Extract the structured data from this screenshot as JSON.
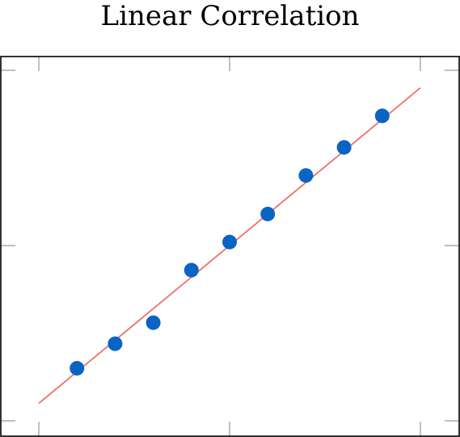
{
  "chart_data": {
    "type": "scatter",
    "title": "Linear Correlation",
    "xlabel": "",
    "ylabel": "",
    "xlim": [
      0,
      10
    ],
    "ylim": [
      0,
      10
    ],
    "grid": false,
    "series": [
      {
        "values": [
          {
            "x": 1,
            "y": 1.5
          },
          {
            "x": 2,
            "y": 2.2
          },
          {
            "x": 3,
            "y": 2.8
          },
          {
            "x": 4,
            "y": 4.3
          },
          {
            "x": 5,
            "y": 5.1
          },
          {
            "x": 6,
            "y": 5.9
          },
          {
            "x": 7,
            "y": 7.0
          },
          {
            "x": 8,
            "y": 7.8
          },
          {
            "x": 9,
            "y": 8.7
          }
        ]
      }
    ],
    "trend_line": {
      "x": [
        0,
        10
      ],
      "y": [
        0.5,
        9.5
      ]
    },
    "colors": {
      "points": "#0a64c4",
      "trend_line": "#f07068",
      "frame": "#000000",
      "ticks": "#7f7f7f"
    }
  }
}
